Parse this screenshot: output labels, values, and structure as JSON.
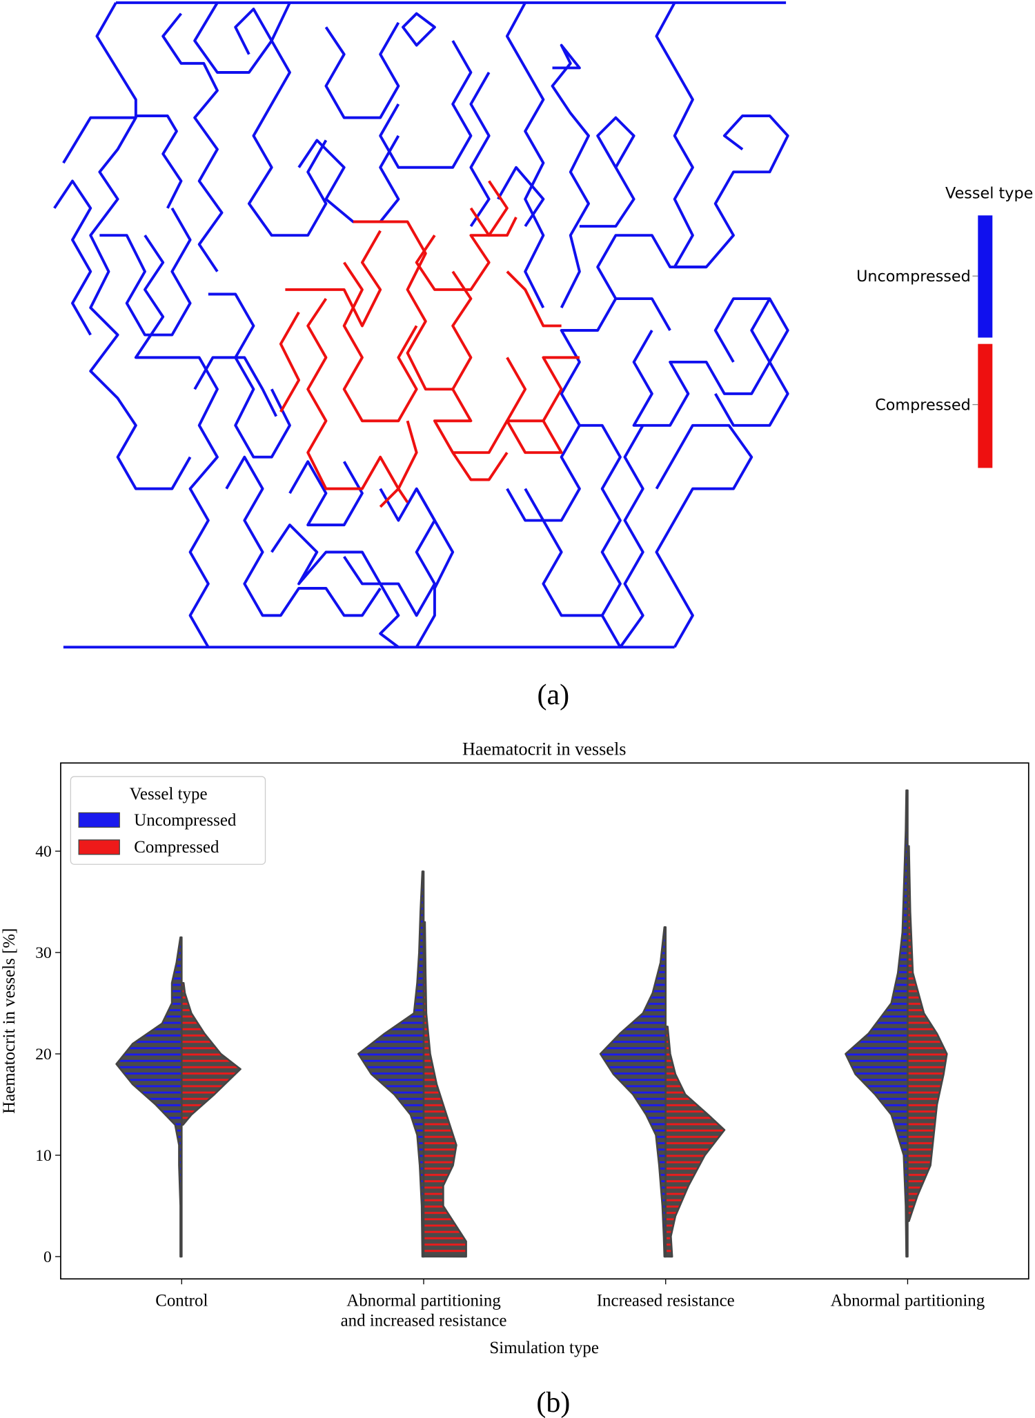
{
  "figure": {
    "panel_labels": [
      "(a)",
      "(b)"
    ],
    "network": {
      "legend_title": "Vessel type",
      "legend_labels": [
        "Uncompressed",
        "Compressed"
      ],
      "colors": [
        "#1010ee",
        "#ee1010"
      ]
    }
  },
  "chart_data": {
    "type": "violin",
    "title": "Haematocrit in vessels",
    "xlabel": "Simulation type",
    "ylabel": "Haematocrit in vessels [%]",
    "categories": [
      "Control",
      "Abnormal partitioning\nand increased resistance",
      "Increased resistance",
      "Abnormal partitioning"
    ],
    "ylim": [
      -2.2,
      48.7
    ],
    "yticks": [
      0,
      10,
      20,
      30,
      40
    ],
    "legend_title": "Vessel type",
    "legend_loc": "upper left",
    "series": [
      {
        "name": "Uncompressed",
        "color": "#1a1aee",
        "side": "left",
        "violins": [
          {
            "y": [
              0,
              5,
              9,
              11,
              13,
              15,
              17,
              19,
              21,
              23,
              25,
              27,
              29,
              31.5
            ],
            "width": [
              0.02,
              0.02,
              0.04,
              0.04,
              0.1,
              0.4,
              0.75,
              1.0,
              0.75,
              0.3,
              0.15,
              0.15,
              0.08,
              0.02
            ]
          },
          {
            "y": [
              0,
              5,
              9,
              12,
              14,
              16,
              18,
              20,
              22,
              24,
              27,
              30,
              34,
              38
            ],
            "width": [
              0.02,
              0.03,
              0.06,
              0.1,
              0.2,
              0.45,
              0.8,
              1.0,
              0.6,
              0.15,
              0.1,
              0.07,
              0.05,
              0.02
            ]
          },
          {
            "y": [
              0,
              2,
              5,
              9,
              12,
              14,
              16,
              18,
              20,
              22,
              24,
              26,
              29,
              32.5
            ],
            "width": [
              0.02,
              0.03,
              0.05,
              0.1,
              0.15,
              0.3,
              0.5,
              0.8,
              1.0,
              0.7,
              0.35,
              0.2,
              0.08,
              0.02
            ]
          },
          {
            "y": [
              0,
              5,
              10,
              14,
              16,
              18,
              20,
              22,
              25,
              28,
              32,
              38,
              42,
              46
            ],
            "width": [
              0.02,
              0.03,
              0.06,
              0.25,
              0.5,
              0.8,
              0.95,
              0.6,
              0.25,
              0.15,
              0.08,
              0.05,
              0.03,
              0.02
            ]
          }
        ]
      },
      {
        "name": "Compressed",
        "color": "#ee1a1a",
        "side": "right",
        "violins": [
          {
            "y": [
              13,
              14,
              16,
              18.5,
              20,
              22,
              24,
              26,
              27
            ],
            "width": [
              0.02,
              0.15,
              0.5,
              0.9,
              0.6,
              0.35,
              0.15,
              0.05,
              0.03
            ]
          },
          {
            "y": [
              0,
              1.5,
              3,
              5,
              7,
              9,
              11,
              14,
              17,
              20,
              24,
              28,
              33
            ],
            "width": [
              0.65,
              0.65,
              0.5,
              0.3,
              0.3,
              0.45,
              0.5,
              0.35,
              0.2,
              0.1,
              0.04,
              0.03,
              0.02
            ]
          },
          {
            "y": [
              0,
              2,
              4,
              7,
              10,
              12.5,
              14,
              16,
              18,
              20,
              22.7
            ],
            "width": [
              0.1,
              0.08,
              0.15,
              0.35,
              0.6,
              0.9,
              0.65,
              0.3,
              0.15,
              0.07,
              0.03
            ]
          },
          {
            "y": [
              3.5,
              6,
              9,
              12,
              15,
              18,
              20,
              22,
              24,
              28,
              34,
              40.5
            ],
            "width": [
              0.02,
              0.15,
              0.35,
              0.4,
              0.45,
              0.55,
              0.6,
              0.45,
              0.25,
              0.08,
              0.04,
              0.02
            ]
          }
        ]
      }
    ]
  }
}
